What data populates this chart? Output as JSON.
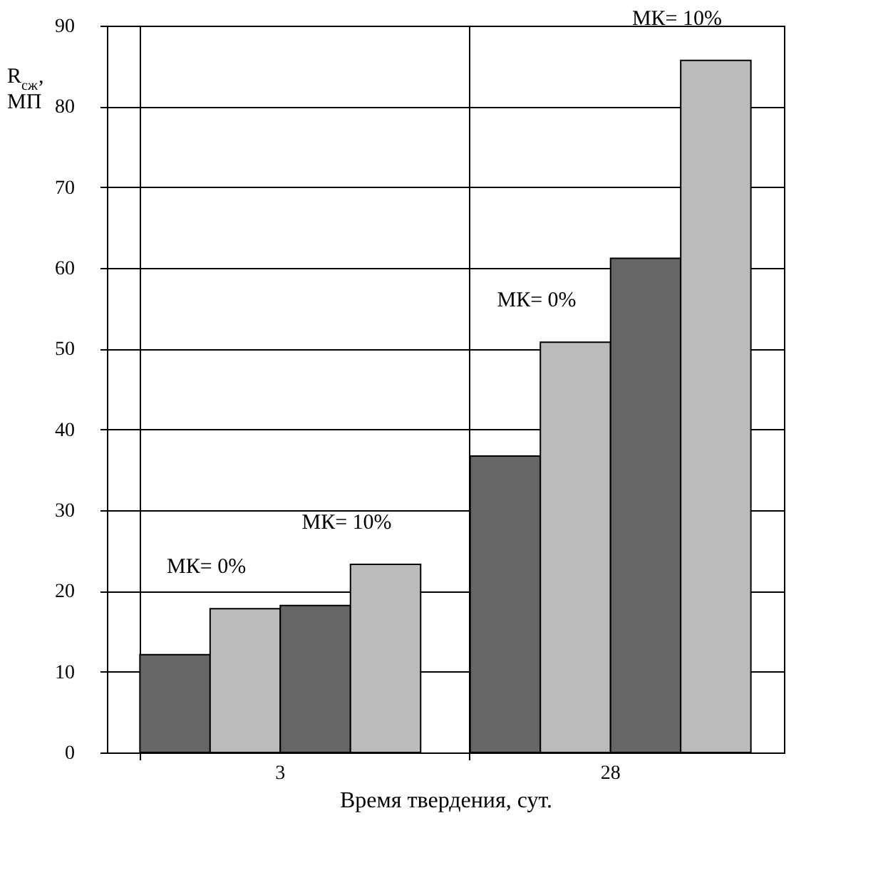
{
  "chart_data": {
    "type": "bar",
    "xlabel": "Время твердения, сут.",
    "ylabel": "R$_{сж}$, МП",
    "categories": [
      "3",
      "28"
    ],
    "series": [
      {
        "color": "#666666",
        "values": [
          12.1,
          36.7
        ]
      },
      {
        "color": "#bbbbbb",
        "values": [
          17.8,
          50.8
        ]
      },
      {
        "color": "#666666",
        "values": [
          18.2,
          61.2
        ]
      },
      {
        "color": "#bbbbbb",
        "values": [
          23.3,
          85.7
        ]
      }
    ],
    "ylim": [
      0,
      90
    ],
    "yticks": [
      0,
      10,
      20,
      30,
      40,
      50,
      60,
      70,
      80,
      90
    ],
    "grid": true,
    "annotations": [
      "МК= 0%",
      "МК= 10%",
      "МК= 0%",
      "МК= 10%"
    ]
  }
}
